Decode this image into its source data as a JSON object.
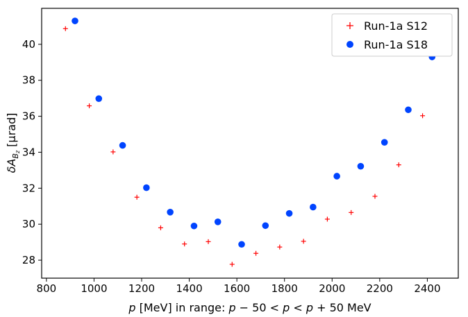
{
  "chart_data": {
    "type": "scatter",
    "xlabel": "p [MeV] in range: p − 50 < p < p + 50 MeV",
    "ylabel": "δA_Bz [µrad]",
    "xlim": [
      780,
      2530
    ],
    "ylim": [
      27.0,
      42.0
    ],
    "xticks": [
      800,
      1000,
      1200,
      1400,
      1600,
      1800,
      2000,
      2200,
      2400
    ],
    "yticks": [
      28,
      30,
      32,
      34,
      36,
      38,
      40
    ],
    "grid": false,
    "legend_position": "top-right",
    "series": [
      {
        "name": "Run-1a S12",
        "marker": "plus",
        "color": "#ff0000",
        "x": [
          880,
          980,
          1080,
          1180,
          1280,
          1380,
          1480,
          1580,
          1680,
          1780,
          1880,
          1980,
          2080,
          2180,
          2280,
          2380
        ],
        "y": [
          40.87,
          36.58,
          34.02,
          31.5,
          29.8,
          28.9,
          29.03,
          27.77,
          28.38,
          28.73,
          29.05,
          30.28,
          30.65,
          31.55,
          33.3,
          36.03
        ]
      },
      {
        "name": "Run-1a S18",
        "marker": "circle",
        "color": "#0044ff",
        "x": [
          920,
          1020,
          1120,
          1220,
          1320,
          1420,
          1520,
          1620,
          1720,
          1820,
          1920,
          2020,
          2120,
          2220,
          2320,
          2420
        ],
        "y": [
          41.3,
          36.98,
          34.38,
          32.03,
          30.67,
          29.9,
          30.13,
          28.88,
          29.92,
          30.6,
          30.95,
          32.67,
          33.22,
          34.55,
          36.36,
          39.3
        ]
      }
    ]
  }
}
